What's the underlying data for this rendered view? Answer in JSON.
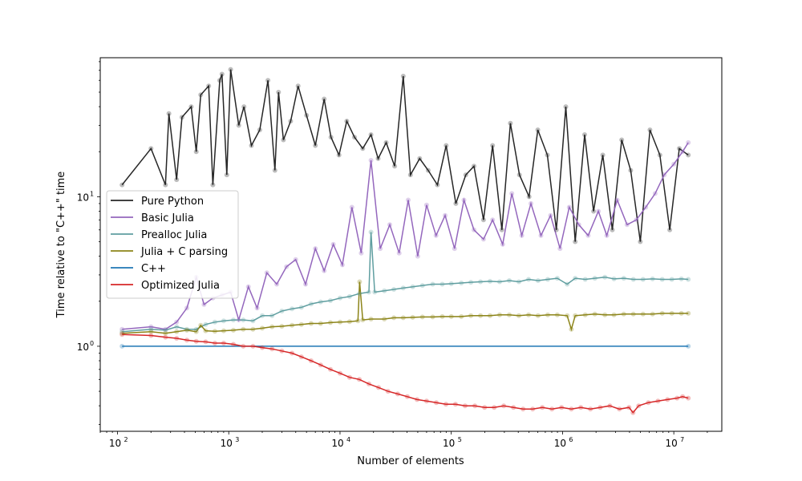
{
  "chart_data": {
    "type": "line",
    "title": "",
    "xlabel": "Number of elements",
    "ylabel": "Time relative to \"C++\" time",
    "xscale": "log",
    "yscale": "log",
    "xlim": [
      70,
      27000000
    ],
    "ylim": [
      0.27,
      85
    ],
    "x_ticks": [
      {
        "label": "10",
        "exp": "2",
        "value": 100
      },
      {
        "label": "10",
        "exp": "3",
        "value": 1000
      },
      {
        "label": "10",
        "exp": "4",
        "value": 10000
      },
      {
        "label": "10",
        "exp": "5",
        "value": 100000
      },
      {
        "label": "10",
        "exp": "6",
        "value": 1000000
      },
      {
        "label": "10",
        "exp": "7",
        "value": 10000000
      }
    ],
    "y_ticks": [
      {
        "label": "10",
        "exp": "0",
        "value": 1
      },
      {
        "label": "10",
        "exp": "1",
        "value": 10
      }
    ],
    "legend_position": "center-left",
    "series": [
      {
        "name": "Pure Python",
        "color": "#262626",
        "x": [
          110,
          200,
          270,
          290,
          340,
          380,
          460,
          510,
          560,
          660,
          720,
          830,
          870,
          960,
          1040,
          1230,
          1370,
          1600,
          1900,
          2250,
          2600,
          2800,
          3100,
          3600,
          4200,
          5000,
          6000,
          7200,
          8300,
          9800,
          11500,
          13500,
          16000,
          19000,
          22000,
          26000,
          31000,
          37000,
          43000,
          52000,
          62000,
          75000,
          90000,
          110000,
          135000,
          160000,
          195000,
          235000,
          285000,
          340000,
          410000,
          500000,
          600000,
          730000,
          880000,
          1070000,
          1300000,
          1580000,
          1900000,
          2300000,
          2800000,
          3400000,
          4100000,
          5000000,
          6100000,
          7500000,
          9200000,
          11200000,
          13500000
        ],
        "y": [
          12,
          21,
          12,
          36,
          13,
          34,
          40,
          20,
          48,
          55,
          12,
          60,
          66,
          14,
          71,
          30,
          40,
          22,
          28,
          60,
          15,
          50,
          24,
          32,
          55,
          35,
          22,
          45,
          25,
          19,
          32,
          25,
          21,
          26,
          18,
          23,
          16,
          64,
          14,
          18,
          15,
          12,
          22,
          9,
          14,
          16,
          7,
          22,
          6,
          31,
          14,
          10,
          28,
          19,
          6,
          40,
          5,
          26,
          8,
          19,
          6,
          24,
          15,
          5,
          28,
          19,
          6,
          21,
          19
        ]
      },
      {
        "name": "Basic Julia",
        "color": "#9467bd",
        "x": [
          110,
          200,
          270,
          340,
          420,
          510,
          600,
          720,
          870,
          1040,
          1230,
          1500,
          1800,
          2200,
          2700,
          3300,
          4000,
          4900,
          6000,
          7200,
          8700,
          10500,
          12800,
          15500,
          19000,
          23000,
          28000,
          34000,
          41000,
          50000,
          60000,
          73000,
          88000,
          107000,
          130000,
          160000,
          195000,
          235000,
          290000,
          350000,
          430000,
          520000,
          640000,
          780000,
          950000,
          1150000,
          1400000,
          1700000,
          2100000,
          2500000,
          3100000,
          3800000,
          4600000,
          5600000,
          6800000,
          8200000,
          10000000,
          12000000,
          13500000
        ],
        "y": [
          1.3,
          1.35,
          1.3,
          1.45,
          1.8,
          2.9,
          1.9,
          2.1,
          2.2,
          2.3,
          1.5,
          2.5,
          1.8,
          3.1,
          2.6,
          3.4,
          3.8,
          2.6,
          4.5,
          3.2,
          4.8,
          3.5,
          8.5,
          4.2,
          17.5,
          4.5,
          6.5,
          4.2,
          9.5,
          4.0,
          8.8,
          5.5,
          7.5,
          4.5,
          9.5,
          6.0,
          5.2,
          7.0,
          4.8,
          10.5,
          5.5,
          9.0,
          5.5,
          7.5,
          4.5,
          8.5,
          6.5,
          5.5,
          8.0,
          5.5,
          9.5,
          6.5,
          7.0,
          8.5,
          10.5,
          14.0,
          16.5,
          20.0,
          23.0
        ]
      },
      {
        "name": "Prealloc Julia",
        "color": "#5f9ea0",
        "x": [
          110,
          200,
          270,
          340,
          420,
          510,
          620,
          750,
          900,
          1100,
          1350,
          1650,
          2000,
          2450,
          3000,
          3700,
          4500,
          5500,
          6700,
          8200,
          10000,
          12200,
          14900,
          18200,
          19000,
          20500,
          25000,
          30500,
          37000,
          45000,
          55000,
          68000,
          83000,
          100000,
          123000,
          150000,
          183000,
          223000,
          272000,
          332000,
          405000,
          495000,
          603000,
          736000,
          898000,
          1100000,
          1300000,
          1600000,
          1950000,
          2400000,
          2900000,
          3550000,
          4330000,
          5290000,
          6450000,
          7870000,
          9600000,
          11700000,
          13500000
        ],
        "y": [
          1.25,
          1.3,
          1.28,
          1.35,
          1.3,
          1.3,
          1.4,
          1.45,
          1.48,
          1.5,
          1.5,
          1.48,
          1.6,
          1.6,
          1.72,
          1.78,
          1.82,
          1.92,
          1.98,
          2.02,
          2.1,
          2.15,
          2.25,
          2.3,
          5.8,
          2.3,
          2.35,
          2.4,
          2.45,
          2.5,
          2.55,
          2.6,
          2.6,
          2.62,
          2.65,
          2.68,
          2.7,
          2.72,
          2.7,
          2.75,
          2.7,
          2.8,
          2.75,
          2.8,
          2.85,
          2.6,
          2.85,
          2.8,
          2.85,
          2.9,
          2.82,
          2.85,
          2.8,
          2.8,
          2.82,
          2.8,
          2.8,
          2.82,
          2.8
        ]
      },
      {
        "name": "Julia + C parsing",
        "color": "#8c8418",
        "x": [
          110,
          200,
          270,
          340,
          420,
          510,
          560,
          620,
          750,
          900,
          1100,
          1350,
          1650,
          2000,
          2450,
          3000,
          3700,
          4500,
          5500,
          6700,
          8200,
          10000,
          12200,
          14500,
          15000,
          16000,
          19000,
          25000,
          30500,
          37000,
          45000,
          55000,
          68000,
          83000,
          100000,
          123000,
          150000,
          183000,
          223000,
          272000,
          332000,
          405000,
          495000,
          603000,
          736000,
          898000,
          1100000,
          1200000,
          1300000,
          1600000,
          1950000,
          2400000,
          2900000,
          3550000,
          4330000,
          5290000,
          6450000,
          7870000,
          9600000,
          11700000,
          13500000
        ],
        "y": [
          1.22,
          1.25,
          1.22,
          1.25,
          1.28,
          1.25,
          1.38,
          1.27,
          1.26,
          1.27,
          1.28,
          1.3,
          1.3,
          1.32,
          1.35,
          1.36,
          1.38,
          1.4,
          1.42,
          1.42,
          1.44,
          1.45,
          1.46,
          1.48,
          2.7,
          1.5,
          1.52,
          1.52,
          1.55,
          1.55,
          1.56,
          1.57,
          1.57,
          1.58,
          1.58,
          1.58,
          1.6,
          1.6,
          1.6,
          1.62,
          1.62,
          1.6,
          1.62,
          1.6,
          1.62,
          1.62,
          1.6,
          1.3,
          1.6,
          1.62,
          1.64,
          1.62,
          1.62,
          1.64,
          1.64,
          1.64,
          1.64,
          1.66,
          1.66,
          1.66,
          1.66
        ]
      },
      {
        "name": "C++",
        "color": "#1f77b4",
        "x": [
          110,
          13500000
        ],
        "y": [
          1.0,
          1.0
        ]
      },
      {
        "name": "Optimized Julia",
        "color": "#d62728",
        "x": [
          110,
          200,
          270,
          340,
          420,
          510,
          620,
          750,
          900,
          1100,
          1350,
          1650,
          2000,
          2450,
          3000,
          3700,
          4500,
          5500,
          6700,
          8200,
          10000,
          12200,
          14900,
          18200,
          22200,
          27000,
          33000,
          40300,
          49200,
          60000,
          73300,
          89500,
          109000,
          133000,
          163000,
          199000,
          243000,
          296000,
          362000,
          442000,
          539000,
          658000,
          803000,
          980000,
          1200000,
          1460000,
          1780000,
          2180000,
          2660000,
          3240000,
          3960000,
          4300000,
          4830000,
          5900000,
          7200000,
          8780000,
          10700000,
          12000000,
          13500000
        ],
        "y": [
          1.2,
          1.18,
          1.15,
          1.13,
          1.1,
          1.08,
          1.07,
          1.05,
          1.05,
          1.03,
          1.0,
          1.0,
          0.98,
          0.96,
          0.93,
          0.9,
          0.85,
          0.8,
          0.75,
          0.7,
          0.66,
          0.62,
          0.6,
          0.56,
          0.53,
          0.5,
          0.48,
          0.46,
          0.44,
          0.43,
          0.42,
          0.41,
          0.41,
          0.4,
          0.4,
          0.39,
          0.39,
          0.4,
          0.39,
          0.38,
          0.38,
          0.39,
          0.38,
          0.39,
          0.38,
          0.39,
          0.38,
          0.39,
          0.4,
          0.38,
          0.39,
          0.36,
          0.4,
          0.42,
          0.43,
          0.44,
          0.45,
          0.46,
          0.45
        ]
      }
    ]
  }
}
